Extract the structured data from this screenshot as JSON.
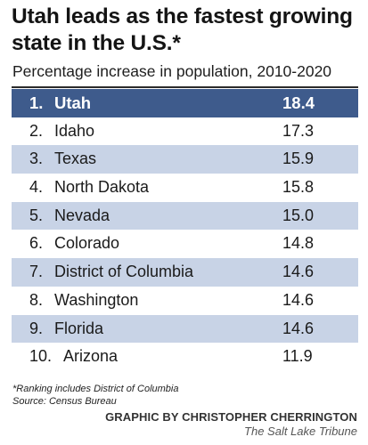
{
  "title": "Utah leads as the fastest growing state in the U.S.*",
  "subtitle": "Percentage increase in population, 2010-2020",
  "footnote": "*Ranking includes District of Columbia",
  "source": "Source: Census Bureau",
  "credit": "GRAPHIC BY CHRISTOPHER CHERRINGTON",
  "publication": "The Salt Lake Tribune",
  "colors": {
    "header_row": "#3e5b8c",
    "shaded_row": "#c8d3e6"
  },
  "chart_data": {
    "type": "table",
    "title": "Utah leads as the fastest growing state in the U.S.*",
    "subtitle": "Percentage increase in population, 2010-2020",
    "rows": [
      {
        "rank": "1.",
        "state": "Utah",
        "value": "18.4"
      },
      {
        "rank": "2.",
        "state": "Idaho",
        "value": "17.3"
      },
      {
        "rank": "3.",
        "state": "Texas",
        "value": "15.9"
      },
      {
        "rank": "4.",
        "state": "North Dakota",
        "value": "15.8"
      },
      {
        "rank": "5.",
        "state": "Nevada",
        "value": "15.0"
      },
      {
        "rank": "6.",
        "state": "Colorado",
        "value": "14.8"
      },
      {
        "rank": "7.",
        "state": "District of Columbia",
        "value": "14.6"
      },
      {
        "rank": "8.",
        "state": "Washington",
        "value": "14.6"
      },
      {
        "rank": "9.",
        "state": "Florida",
        "value": "14.6"
      },
      {
        "rank": "10.",
        "state": "Arizona",
        "value": "11.9"
      }
    ]
  }
}
